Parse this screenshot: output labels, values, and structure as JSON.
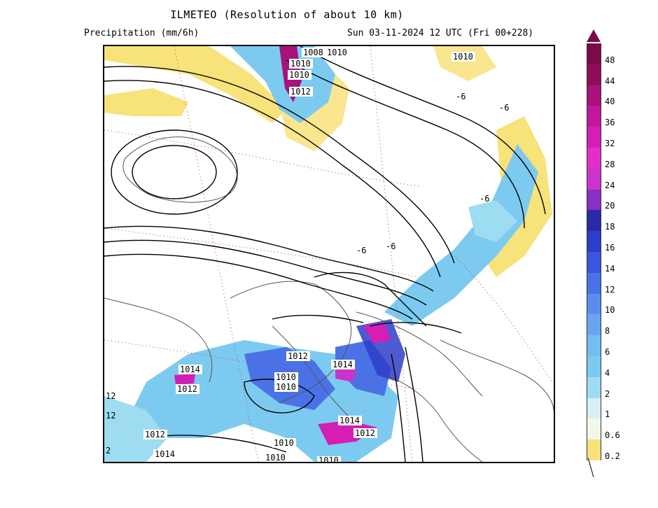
{
  "header": {
    "title": "ILMETEO (Resolution of about 10 km)",
    "subtitle_left": "Precipitation (mm/6h)",
    "subtitle_right": "Sun 03-11-2024 12 UTC (Fri 00+228)"
  },
  "legend": {
    "labels": [
      "48",
      "44",
      "40",
      "36",
      "32",
      "28",
      "24",
      "20",
      "18",
      "16",
      "14",
      "12",
      "10",
      "8",
      "6",
      "4",
      "2",
      "1",
      "0.6",
      "0.2"
    ],
    "colors": [
      "#7a0a4a",
      "#8e0e5a",
      "#a8127a",
      "#c0189a",
      "#d41eb6",
      "#e22ec8",
      "#cc33cc",
      "#8a2ec4",
      "#2a2aa8",
      "#2e3ec8",
      "#3a56dc",
      "#4a72e6",
      "#5a8eec",
      "#6aa6f0",
      "#74bcf2",
      "#7ccaf0",
      "#9edcf2",
      "#d6f0f6",
      "#f3f7ea",
      "#f8e27a"
    ]
  },
  "isobar_labels": [
    "1008",
    "1010",
    "1010",
    "1010",
    "1012",
    "1010",
    "-6",
    "-6",
    "-6",
    "-6",
    "-6",
    "1012",
    "1014",
    "1014",
    "1012",
    "1010",
    "1010",
    "1014",
    "1012",
    "1012",
    "1014",
    "1010",
    "1010",
    "1010",
    "12",
    "12",
    "2"
  ],
  "colors": {
    "yellow": "#f8e27a",
    "lightblue": "#7ccaf0",
    "blue": "#4a72e6",
    "magenta": "#d41eb6",
    "isobar": "#000000",
    "border": "#555555",
    "temp_dotted": "#cc3333"
  }
}
